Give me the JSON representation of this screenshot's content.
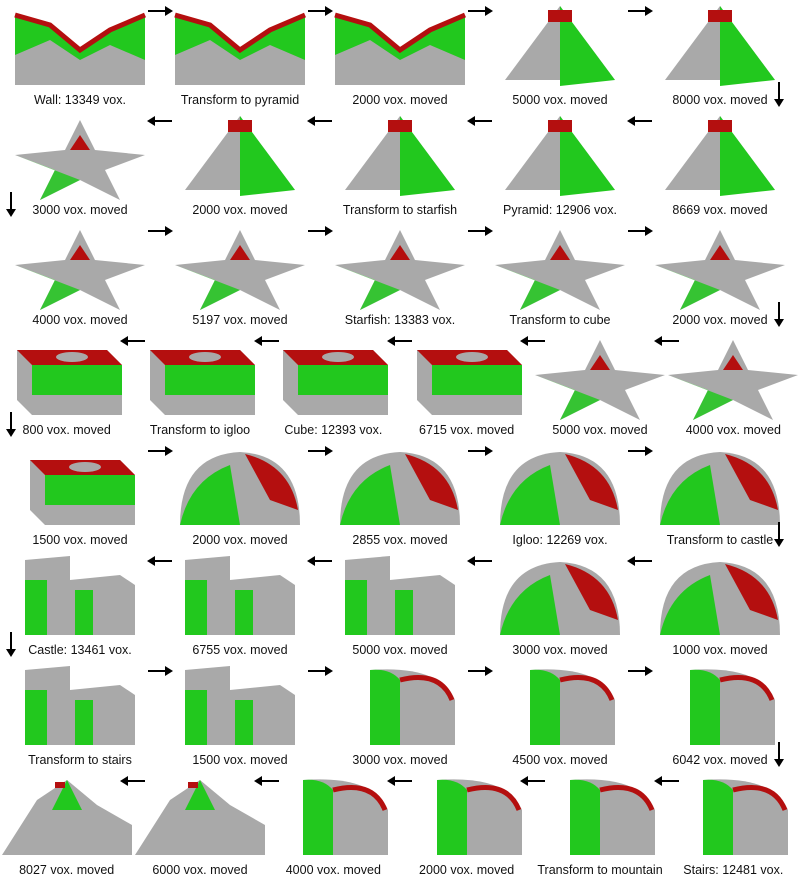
{
  "colors": {
    "gray": "#a9a9a9",
    "green": "#22c81e",
    "red": "#b40f0f"
  },
  "rows": [
    {
      "dir": "right",
      "cells": [
        {
          "caption": "Wall: 13349 vox.",
          "shape": "wall"
        },
        {
          "caption": "Transform to pyramid",
          "shape": "wall"
        },
        {
          "caption": "2000 vox. moved",
          "shape": "wall"
        },
        {
          "caption": "5000 vox. moved",
          "shape": "pyramid"
        },
        {
          "caption": "8000 vox. moved",
          "shape": "pyramid"
        }
      ]
    },
    {
      "dir": "left",
      "cells": [
        {
          "caption": "3000 vox. moved",
          "shape": "starfish"
        },
        {
          "caption": "2000 vox. moved",
          "shape": "pyramid"
        },
        {
          "caption": "Transform to starfish",
          "shape": "pyramid"
        },
        {
          "caption": "Pyramid: 12906 vox.",
          "shape": "pyramid"
        },
        {
          "caption": "8669 vox. moved",
          "shape": "pyramid"
        }
      ]
    },
    {
      "dir": "right",
      "cells": [
        {
          "caption": "4000 vox. moved",
          "shape": "starfish"
        },
        {
          "caption": "5197 vox. moved",
          "shape": "starfish"
        },
        {
          "caption": "Starfish: 13383 vox.",
          "shape": "starfish"
        },
        {
          "caption": "Transform to cube",
          "shape": "starfish"
        },
        {
          "caption": "2000 vox. moved",
          "shape": "starfish"
        }
      ]
    },
    {
      "dir": "left",
      "cells": [
        {
          "caption": "800 vox. moved",
          "shape": "cube"
        },
        {
          "caption": "Transform to igloo",
          "shape": "cube"
        },
        {
          "caption": "Cube: 12393 vox.",
          "shape": "cube"
        },
        {
          "caption": "6715 vox. moved",
          "shape": "cube"
        },
        {
          "caption": "5000 vox. moved",
          "shape": "starfish"
        },
        {
          "caption": "4000 vox. moved",
          "shape": "starfish"
        }
      ]
    },
    {
      "dir": "right",
      "cells": [
        {
          "caption": "1500 vox. moved",
          "shape": "cube"
        },
        {
          "caption": "2000 vox. moved",
          "shape": "igloo"
        },
        {
          "caption": "2855 vox. moved",
          "shape": "igloo"
        },
        {
          "caption": "Igloo: 12269 vox.",
          "shape": "igloo"
        },
        {
          "caption": "Transform to castle",
          "shape": "igloo"
        }
      ]
    },
    {
      "dir": "left",
      "cells": [
        {
          "caption": "Castle: 13461 vox.",
          "shape": "castle"
        },
        {
          "caption": "6755 vox. moved",
          "shape": "castle"
        },
        {
          "caption": "5000 vox. moved",
          "shape": "castle"
        },
        {
          "caption": "3000 vox. moved",
          "shape": "igloo"
        },
        {
          "caption": "1000 vox. moved",
          "shape": "igloo"
        }
      ]
    },
    {
      "dir": "right",
      "cells": [
        {
          "caption": "Transform to stairs",
          "shape": "castle"
        },
        {
          "caption": "1500 vox. moved",
          "shape": "castle"
        },
        {
          "caption": "3000 vox. moved",
          "shape": "stairs"
        },
        {
          "caption": "4500 vox. moved",
          "shape": "stairs"
        },
        {
          "caption": "6042 vox. moved",
          "shape": "stairs"
        }
      ]
    },
    {
      "dir": "left",
      "cells": [
        {
          "caption": "8027 vox. moved",
          "shape": "mountain"
        },
        {
          "caption": "6000 vox. moved",
          "shape": "mountain"
        },
        {
          "caption": "4000 vox. moved",
          "shape": "stairs"
        },
        {
          "caption": "2000 vox. moved",
          "shape": "stairs"
        },
        {
          "caption": "Transform to mountain",
          "shape": "stairs"
        },
        {
          "caption": "Stairs: 12481 vox.",
          "shape": "stairs"
        }
      ]
    }
  ]
}
